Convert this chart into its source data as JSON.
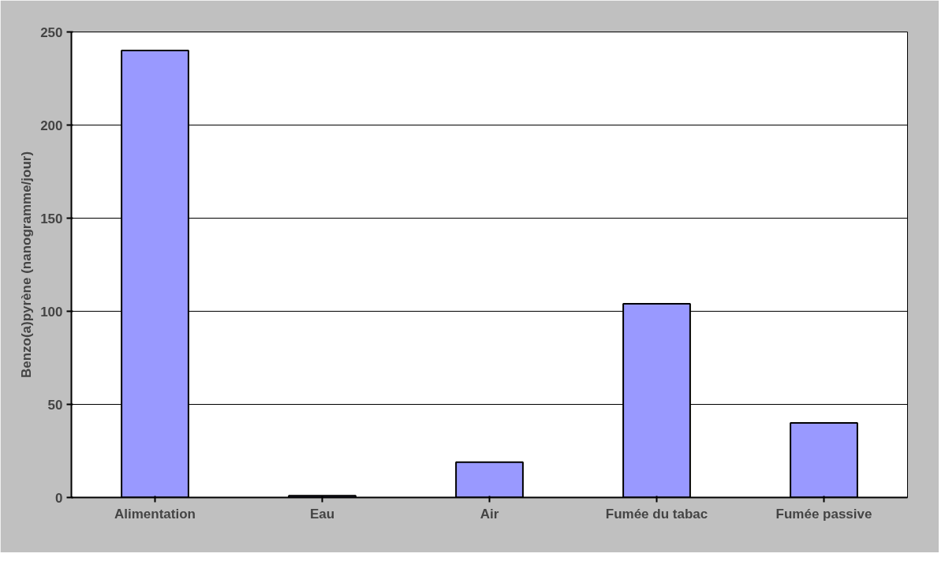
{
  "chart_data": {
    "type": "bar",
    "ylabel": "Benzo(a)pyrène (nanogramme/jour)",
    "categories": [
      "Alimentation",
      "Eau",
      "Air",
      "Fumée du tabac",
      "Fumée passive"
    ],
    "values": [
      240,
      1,
      19,
      104,
      40
    ],
    "color": "#9999ff",
    "ylim": [
      0,
      250
    ],
    "yticks": [
      0,
      50,
      100,
      150,
      200,
      250
    ],
    "grid": "y"
  }
}
